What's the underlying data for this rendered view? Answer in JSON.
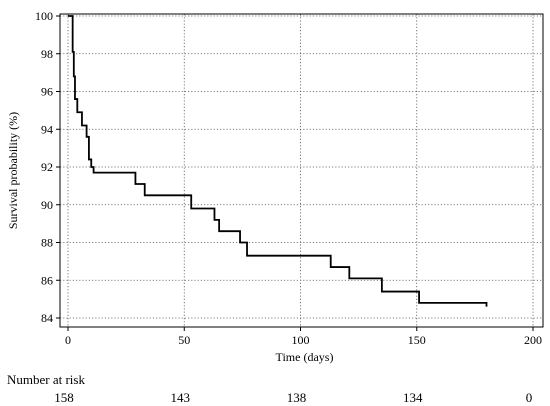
{
  "chart_data": {
    "type": "line",
    "title": "",
    "xlabel": "Time (days)",
    "ylabel": "Survival probability (%)",
    "xlim": [
      0,
      200
    ],
    "ylim": [
      84,
      100
    ],
    "x_ticks": [
      "0",
      "50",
      "100",
      "150",
      "200"
    ],
    "x_tick_values": [
      0,
      50,
      100,
      150,
      200
    ],
    "y_ticks": [
      "84",
      "86",
      "88",
      "90",
      "92",
      "94",
      "96",
      "98",
      "100"
    ],
    "y_tick_values": [
      84,
      86,
      88,
      90,
      92,
      94,
      96,
      98,
      100
    ],
    "grid": true,
    "series": [
      {
        "style": "step",
        "x": [
          0,
          1.5,
          2,
          2.5,
          3,
          4,
          5,
          6,
          7,
          8,
          9,
          10,
          11,
          28,
          29,
          33,
          52,
          53,
          62,
          63,
          65,
          73,
          74,
          77,
          78,
          112,
          113,
          120,
          121,
          134,
          135,
          150,
          151,
          180
        ],
        "y": [
          100,
          100,
          98.1,
          96.8,
          95.6,
          94.9,
          94.9,
          94.2,
          94.2,
          93.6,
          92.4,
          92.0,
          91.7,
          91.7,
          91.1,
          90.5,
          90.5,
          89.8,
          89.8,
          89.2,
          88.6,
          88.6,
          88.0,
          87.3,
          87.3,
          87.3,
          86.7,
          86.7,
          86.1,
          86.1,
          85.4,
          85.4,
          84.8,
          84.6
        ]
      }
    ],
    "risk_table": {
      "label": "Number at risk",
      "times": [
        0,
        50,
        100,
        150,
        200
      ],
      "values": [
        "158",
        "143",
        "138",
        "134",
        "0"
      ]
    }
  }
}
